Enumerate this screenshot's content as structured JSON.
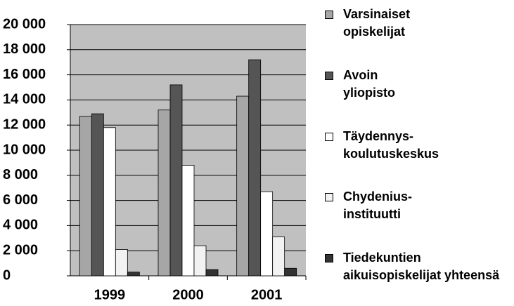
{
  "chart_data": {
    "type": "bar",
    "categories": [
      "1999",
      "2000",
      "2001"
    ],
    "series": [
      {
        "name": "Varsinaiset\nopiskelijat",
        "color": "#a6a6a6",
        "values": [
          12700,
          13200,
          14300
        ]
      },
      {
        "name": "Avoin\nyliopisto",
        "color": "#555555",
        "values": [
          12900,
          15200,
          17200
        ]
      },
      {
        "name": "Täydennys-\nkoulutuskeskus",
        "color": "#ffffff",
        "values": [
          11800,
          8800,
          6700
        ]
      },
      {
        "name": "Chydenius-\ninstituutti",
        "color": "#f2f2f2",
        "values": [
          2100,
          2400,
          3100
        ]
      },
      {
        "name": "Tiedekuntien\naikuisopiskelijat  yhteensä",
        "color": "#333333",
        "values": [
          300,
          500,
          600
        ]
      }
    ],
    "ylim": [
      0,
      20000
    ],
    "yticks": [
      0,
      {
        "value": 2000,
        "label": "2 000"
      },
      {
        "value": 4000,
        "label": "4 000"
      },
      {
        "value": 6000,
        "label": "6 000"
      },
      {
        "value": 8000,
        "label": "8 000"
      },
      {
        "value": 10000,
        "label": "10 000"
      },
      {
        "value": 12000,
        "label": "12 000"
      },
      {
        "value": 14000,
        "label": "14 000"
      },
      {
        "value": 16000,
        "label": "16 000"
      },
      {
        "value": 18000,
        "label": "18 000"
      },
      {
        "value": 20000,
        "label": "20 000"
      }
    ],
    "grid": true
  }
}
